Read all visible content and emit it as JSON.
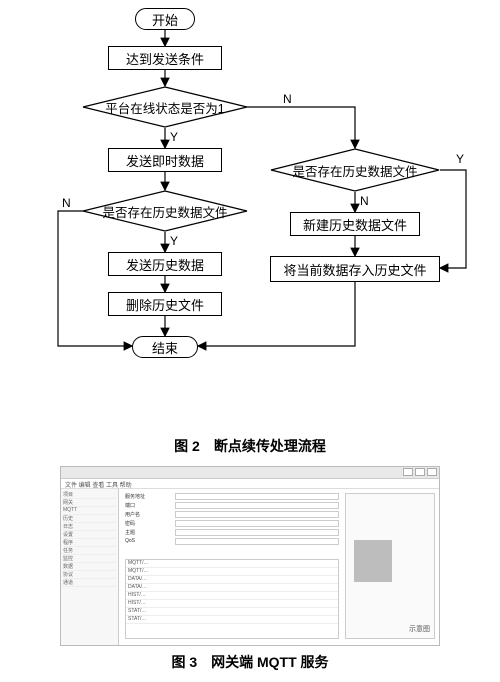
{
  "flow": {
    "type": "flowchart",
    "background_color": "#ffffff",
    "stroke_color": "#000000",
    "stroke_width": 1.2,
    "font_size": 13,
    "label_font_size": 12,
    "nodes": {
      "start": {
        "kind": "terminator",
        "label": "开始"
      },
      "cond_reached": {
        "kind": "process",
        "label": "达到发送条件"
      },
      "dec_online": {
        "kind": "decision",
        "label": "平台在线状态是否为1"
      },
      "send_now": {
        "kind": "process",
        "label": "发送即时数据"
      },
      "dec_hist_l": {
        "kind": "decision",
        "label": "是否存在历史数据文件"
      },
      "send_hist": {
        "kind": "process",
        "label": "发送历史数据"
      },
      "del_hist": {
        "kind": "process",
        "label": "删除历史文件"
      },
      "end": {
        "kind": "terminator",
        "label": "结束"
      },
      "dec_hist_r": {
        "kind": "decision",
        "label": "是否存在历史数据文件"
      },
      "new_file": {
        "kind": "process",
        "label": "新建历史数据文件"
      },
      "save_file": {
        "kind": "process",
        "label": "将当前数据存入历史文件"
      }
    },
    "edges": [
      {
        "from": "start",
        "to": "cond_reached",
        "label": ""
      },
      {
        "from": "cond_reached",
        "to": "dec_online",
        "label": ""
      },
      {
        "from": "dec_online",
        "to": "send_now",
        "label": "Y",
        "via": "bottom"
      },
      {
        "from": "dec_online",
        "to": "dec_hist_r",
        "label": "N",
        "via": "right"
      },
      {
        "from": "send_now",
        "to": "dec_hist_l",
        "label": ""
      },
      {
        "from": "dec_hist_l",
        "to": "send_hist",
        "label": "Y",
        "via": "bottom"
      },
      {
        "from": "dec_hist_l",
        "to": "end",
        "label": "N",
        "via": "left"
      },
      {
        "from": "send_hist",
        "to": "del_hist",
        "label": ""
      },
      {
        "from": "del_hist",
        "to": "end",
        "label": ""
      },
      {
        "from": "dec_hist_r",
        "to": "new_file",
        "label": "N",
        "via": "bottom"
      },
      {
        "from": "dec_hist_r",
        "to": "save_file",
        "label": "Y",
        "via": "right-down"
      },
      {
        "from": "new_file",
        "to": "save_file",
        "label": ""
      },
      {
        "from": "save_file",
        "to": "end",
        "label": "",
        "via": "down-left"
      }
    ],
    "edge_labels": {
      "yes": "Y",
      "no": "N"
    }
  },
  "captions": {
    "fig2": "图 2　断点续传处理流程",
    "fig3": "图 3　网关端 MQTT 服务"
  },
  "fig3": {
    "type": "screenshot",
    "background_color": "#f2f2f2",
    "border_color": "#bbbbbb",
    "menubar_text": "文件 编辑 查看 工具 帮助",
    "sidebar_items": [
      "项目",
      "网关",
      "MQTT",
      "历史",
      "日志",
      "设置",
      "程序",
      "任务",
      "监控",
      "数据",
      "协议",
      "通道"
    ],
    "form_rows": [
      {
        "label": "服务地址",
        "value": ""
      },
      {
        "label": "端口",
        "value": ""
      },
      {
        "label": "用户名",
        "value": ""
      },
      {
        "label": "密码",
        "value": ""
      },
      {
        "label": "主题",
        "value": ""
      },
      {
        "label": "QoS",
        "value": ""
      }
    ],
    "grid_rows": [
      "MQTT/…",
      "MQTT/…",
      "DATA/…",
      "DATA/…",
      "HIST/…",
      "HIST/…",
      "STAT/…",
      "STAT/…"
    ],
    "right_panel_symbol": "示意图"
  }
}
